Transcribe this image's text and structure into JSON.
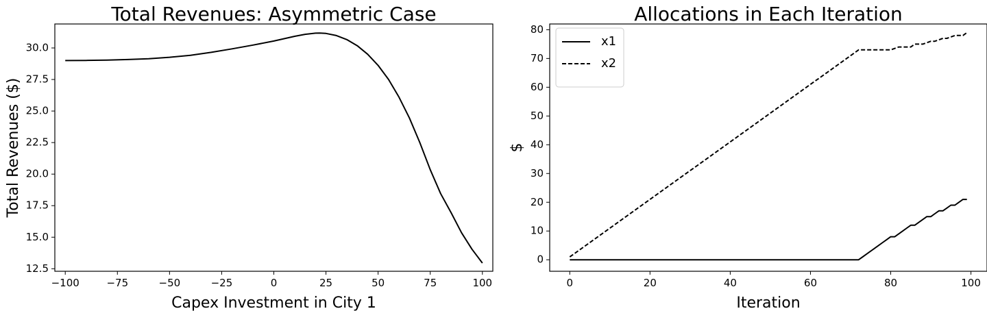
{
  "chart_data": [
    {
      "type": "line",
      "title": "Total Revenues: Asymmetric Case",
      "xlabel": "Capex Investment in City 1",
      "ylabel": "Total Revenues ($)",
      "xlim": [
        -105,
        105
      ],
      "ylim": [
        12.3,
        31.9
      ],
      "xticks": [
        -100,
        -75,
        -50,
        -25,
        0,
        25,
        50,
        75,
        100
      ],
      "xtick_labels": [
        "−100",
        "−75",
        "−50",
        "−25",
        "0",
        "25",
        "50",
        "75",
        "100"
      ],
      "yticks": [
        12.5,
        15.0,
        17.5,
        20.0,
        22.5,
        25.0,
        27.5,
        30.0
      ],
      "ytick_labels": [
        "12.5",
        "15.0",
        "17.5",
        "20.0",
        "22.5",
        "25.0",
        "27.5",
        "30.0"
      ],
      "grid": false,
      "series": [
        {
          "style": "solid",
          "x": [
            -100,
            -90,
            -80,
            -70,
            -60,
            -50,
            -40,
            -30,
            -20,
            -10,
            0,
            10,
            15,
            20,
            22,
            25,
            30,
            35,
            40,
            45,
            50,
            55,
            60,
            65,
            70,
            75,
            80,
            85,
            90,
            95,
            100
          ],
          "y": [
            29.0,
            29.01,
            29.04,
            29.08,
            29.15,
            29.26,
            29.42,
            29.65,
            29.93,
            30.23,
            30.55,
            30.92,
            31.08,
            31.17,
            31.18,
            31.15,
            30.98,
            30.66,
            30.18,
            29.5,
            28.62,
            27.5,
            26.1,
            24.45,
            22.5,
            20.35,
            18.45,
            16.95,
            15.35,
            14.05,
            12.95
          ]
        }
      ]
    },
    {
      "type": "line",
      "title": "Allocations in Each Iteration",
      "xlabel": "Iteration",
      "ylabel": "$",
      "xlim": [
        -5,
        104
      ],
      "ylim": [
        -4,
        82
      ],
      "xticks": [
        0,
        20,
        40,
        60,
        80,
        100
      ],
      "xtick_labels": [
        "0",
        "20",
        "40",
        "60",
        "80",
        "100"
      ],
      "yticks": [
        0,
        10,
        20,
        30,
        40,
        50,
        60,
        70,
        80
      ],
      "ytick_labels": [
        "0",
        "10",
        "20",
        "30",
        "40",
        "50",
        "60",
        "70",
        "80"
      ],
      "grid": false,
      "legend_position": "top-left",
      "series": [
        {
          "name": "x1",
          "style": "solid",
          "x": [
            0,
            72,
            73,
            74,
            75,
            76,
            77,
            78,
            79,
            80,
            81,
            82,
            83,
            84,
            85,
            86,
            87,
            88,
            89,
            90,
            91,
            92,
            93,
            94,
            95,
            96,
            97,
            98,
            99
          ],
          "y": [
            0,
            0,
            1,
            2,
            3,
            4,
            5,
            6,
            7,
            8,
            8,
            9,
            10,
            11,
            12,
            12,
            13,
            14,
            15,
            15,
            16,
            17,
            17,
            18,
            19,
            19,
            20,
            21,
            21
          ]
        },
        {
          "name": "x2",
          "style": "dashed",
          "x": [
            0,
            72,
            73,
            80,
            81,
            82,
            83,
            84,
            85,
            86,
            87,
            88,
            89,
            90,
            91,
            92,
            93,
            94,
            95,
            96,
            97,
            98,
            99
          ],
          "y": [
            1,
            73,
            73,
            73,
            73.5,
            74,
            74,
            74,
            74,
            75,
            75,
            75,
            75.5,
            76,
            76,
            76.5,
            77,
            77,
            77.5,
            78,
            78,
            78,
            79
          ]
        }
      ]
    }
  ]
}
